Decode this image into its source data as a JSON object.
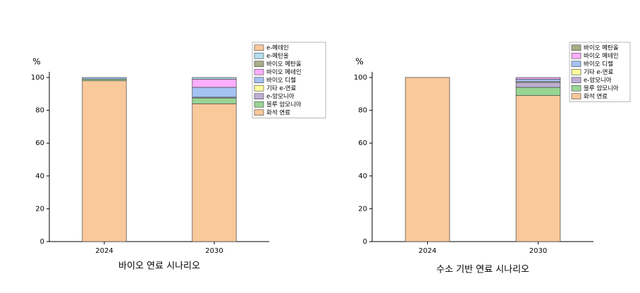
{
  "chart_data": [
    {
      "type": "bar",
      "stacked": true,
      "title": "바이오 연료 시나리오",
      "y_label": "%",
      "categories": [
        "2024",
        "2030"
      ],
      "series": [
        {
          "name": "화석 연료",
          "color": "#f9c89b",
          "values": [
            98,
            84
          ]
        },
        {
          "name": "블루 암모니아",
          "color": "#98d594",
          "values": [
            1,
            3.5
          ]
        },
        {
          "name": "e-암모니아",
          "color": "#bfaed4",
          "values": [
            0,
            0.5
          ]
        },
        {
          "name": "기타 e-연료",
          "color": "#fdfd9c",
          "values": [
            0,
            0
          ]
        },
        {
          "name": "바이오 디젤",
          "color": "#a4c2f4",
          "values": [
            1,
            6
          ]
        },
        {
          "name": "바이오 메테인",
          "color": "#fcaeff",
          "values": [
            0,
            5
          ]
        },
        {
          "name": "바이오 메탄올",
          "color": "#a8ad88",
          "values": [
            0,
            0
          ]
        },
        {
          "name": "e-메탄올",
          "color": "#b3e0ee",
          "values": [
            0,
            1
          ]
        },
        {
          "name": "e-메테인",
          "color": "#f9c89b",
          "values": [
            0,
            0
          ]
        }
      ],
      "ylim": [
        0,
        100
      ],
      "yticks": [
        0,
        20,
        40,
        60,
        80,
        100
      ],
      "legend": "upper right"
    },
    {
      "type": "bar",
      "stacked": true,
      "title": "수소 기반 연료 시나리오",
      "y_label": "%",
      "categories": [
        "2024",
        "2030"
      ],
      "series": [
        {
          "name": "화석 연료",
          "color": "#f9c89b",
          "values": [
            100,
            89
          ]
        },
        {
          "name": "블루 암모니아",
          "color": "#98d594",
          "values": [
            0,
            5
          ]
        },
        {
          "name": "e-암모니아",
          "color": "#bfaed4",
          "values": [
            0,
            3
          ]
        },
        {
          "name": "기타 e-연료",
          "color": "#fdfd9c",
          "values": [
            0,
            0.5
          ]
        },
        {
          "name": "바이오 디젤",
          "color": "#a4c2f4",
          "values": [
            0,
            1.5
          ]
        },
        {
          "name": "바이오 메테인",
          "color": "#fcaeff",
          "values": [
            0,
            1
          ]
        },
        {
          "name": "바이오 메탄올",
          "color": "#a8ad88",
          "values": [
            0,
            0
          ]
        }
      ],
      "ylim": [
        0,
        100
      ],
      "yticks": [
        0,
        20,
        40,
        60,
        80,
        100
      ],
      "legend": "upper right"
    }
  ]
}
